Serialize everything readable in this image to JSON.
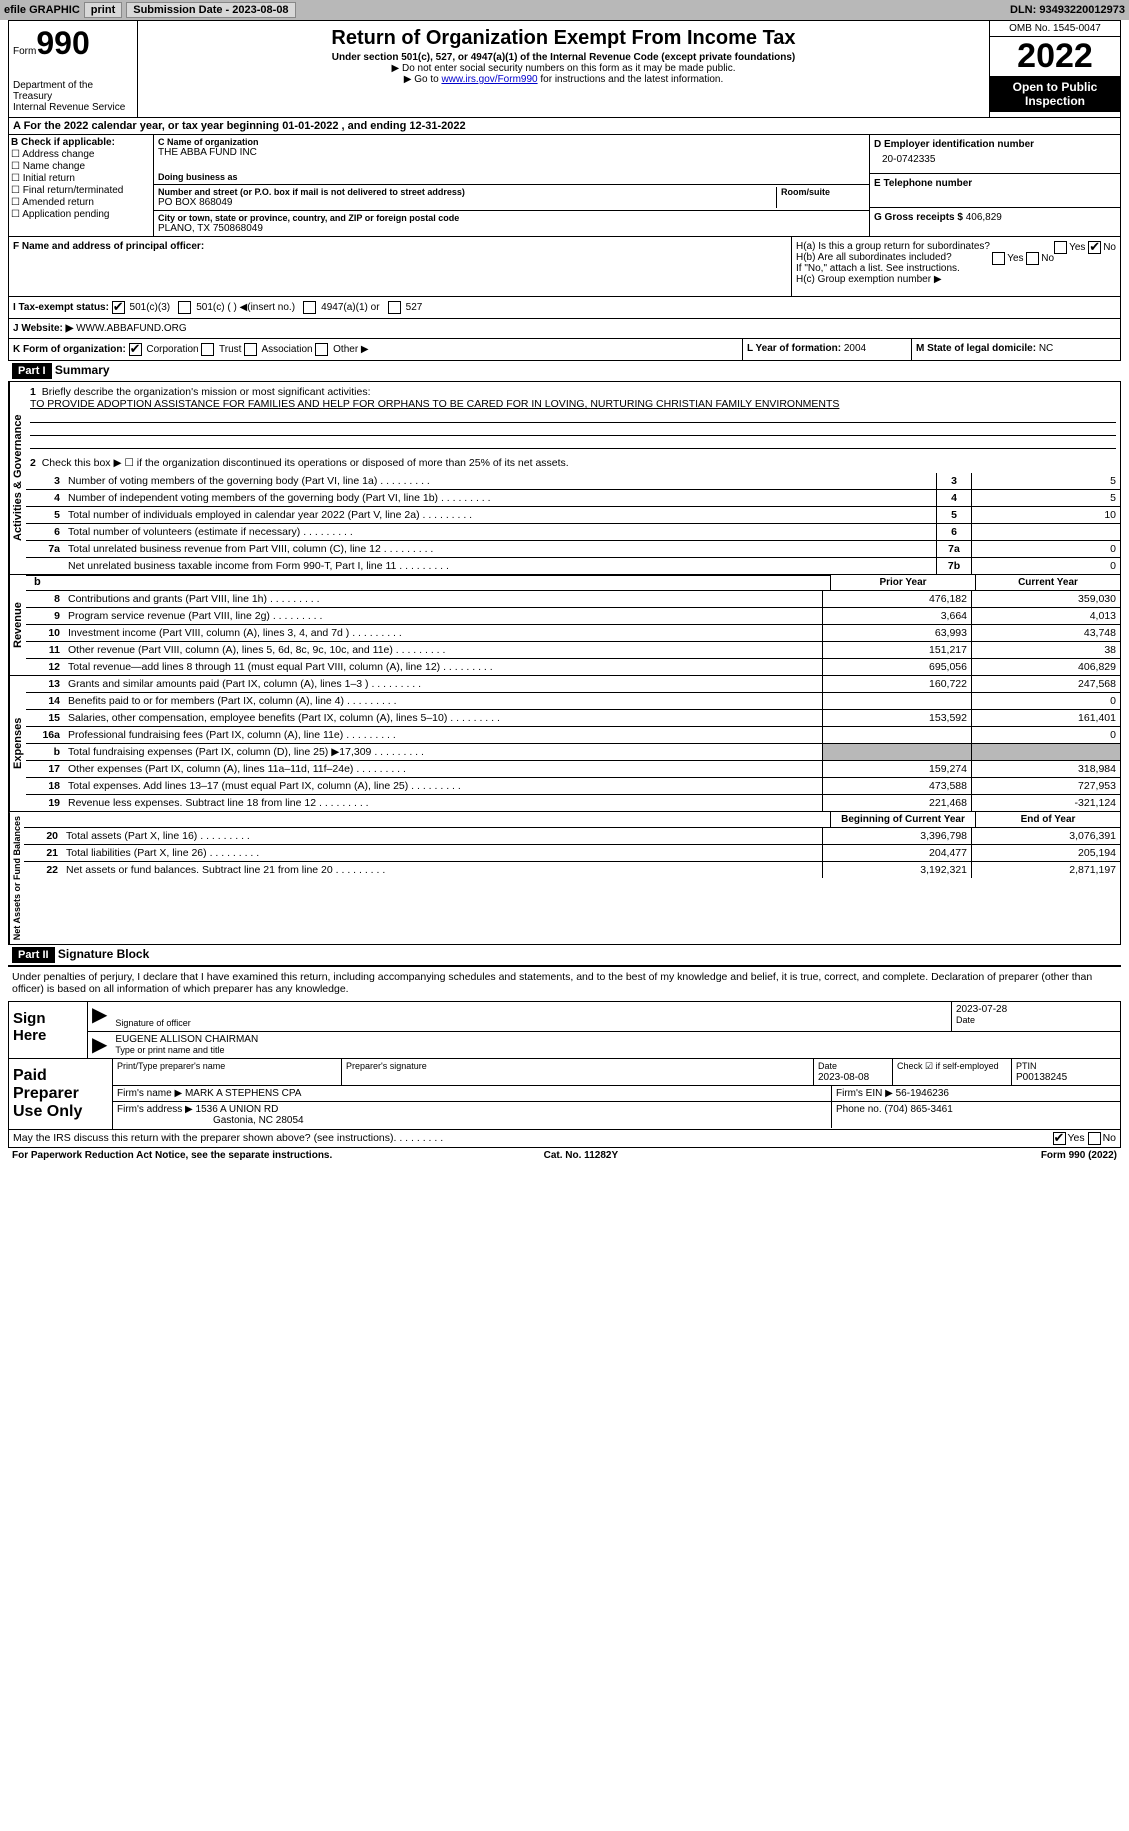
{
  "topbar": {
    "efile": "efile GRAPHIC",
    "print": "print",
    "subdate_label": "Submission Date - ",
    "subdate": "2023-08-08",
    "dln_label": "DLN: ",
    "dln": "93493220012973"
  },
  "header": {
    "form_label": "Form",
    "form_num": "990",
    "dept": "Department of the Treasury\nInternal Revenue Service",
    "title": "Return of Organization Exempt From Income Tax",
    "sub1": "Under section 501(c), 527, or 4947(a)(1) of the Internal Revenue Code (except private foundations)",
    "sub2": "▶ Do not enter social security numbers on this form as it may be made public.",
    "sub3_pre": "▶ Go to ",
    "sub3_link": "www.irs.gov/Form990",
    "sub3_post": " for instructions and the latest information.",
    "omb": "OMB No. 1545-0047",
    "year": "2022",
    "otp": "Open to Public Inspection"
  },
  "A": {
    "text": "A For the 2022 calendar year, or tax year beginning 01-01-2022   , and ending 12-31-2022"
  },
  "B": {
    "label": "B Check if applicable:",
    "items": [
      "Address change",
      "Name change",
      "Initial return",
      "Final return/terminated",
      "Amended return",
      "Application pending"
    ]
  },
  "C": {
    "name_label": "C Name of organization",
    "name": "THE ABBA FUND INC",
    "dba_label": "Doing business as",
    "addr_label": "Number and street (or P.O. box if mail is not delivered to street address)",
    "room_label": "Room/suite",
    "addr": "PO BOX 868049",
    "city_label": "City or town, state or province, country, and ZIP or foreign postal code",
    "city": "PLANO, TX  750868049"
  },
  "D": {
    "label": "D Employer identification number",
    "val": "20-0742335"
  },
  "E": {
    "label": "E Telephone number"
  },
  "G": {
    "label": "G Gross receipts $ ",
    "val": "406,829"
  },
  "F": {
    "label": "F Name and address of principal officer:"
  },
  "H": {
    "a": "H(a)  Is this a group return for subordinates?",
    "b": "H(b)  Are all subordinates included?",
    "b_note": "If \"No,\" attach a list. See instructions.",
    "c": "H(c)  Group exemption number ▶",
    "yes": "Yes",
    "no": "No"
  },
  "I": {
    "label": "I   Tax-exempt status:",
    "opts": [
      "501(c)(3)",
      "501(c) (  ) ◀(insert no.)",
      "4947(a)(1) or",
      "527"
    ]
  },
  "J": {
    "label": "J   Website: ▶ ",
    "val": "WWW.ABBAFUND.ORG"
  },
  "K": {
    "label": "K Form of organization:",
    "opts": [
      "Corporation",
      "Trust",
      "Association",
      "Other ▶"
    ]
  },
  "L": {
    "label": "L Year of formation: ",
    "val": "2004"
  },
  "M": {
    "label": "M State of legal domicile: ",
    "val": "NC"
  },
  "part1": {
    "hdr": "Part I",
    "title": "Summary",
    "sec1_label": "Activities & Governance",
    "sec2_label": "Revenue",
    "sec3_label": "Expenses",
    "sec4_label": "Net Assets or Fund Balances",
    "l1_label": "Briefly describe the organization's mission or most significant activities:",
    "l1_text": "TO PROVIDE ADOPTION ASSISTANCE FOR FAMILIES AND HELP FOR ORPHANS TO BE CARED FOR IN LOVING, NURTURING CHRISTIAN FAMILY ENVIRONMENTS",
    "l2": "Check this box ▶ ☐ if the organization discontinued its operations or disposed of more than 25% of its net assets.",
    "col_prior": "Prior Year",
    "col_current": "Current Year",
    "col_begin": "Beginning of Current Year",
    "col_end": "End of Year",
    "rows_gov": [
      {
        "n": "3",
        "t": "Number of voting members of the governing body (Part VI, line 1a)",
        "box": "3",
        "v": "5"
      },
      {
        "n": "4",
        "t": "Number of independent voting members of the governing body (Part VI, line 1b)",
        "box": "4",
        "v": "5"
      },
      {
        "n": "5",
        "t": "Total number of individuals employed in calendar year 2022 (Part V, line 2a)",
        "box": "5",
        "v": "10"
      },
      {
        "n": "6",
        "t": "Total number of volunteers (estimate if necessary)",
        "box": "6",
        "v": ""
      },
      {
        "n": "7a",
        "t": "Total unrelated business revenue from Part VIII, column (C), line 12",
        "box": "7a",
        "v": "0"
      },
      {
        "n": "",
        "t": "Net unrelated business taxable income from Form 990-T, Part I, line 11",
        "box": "7b",
        "v": "0"
      }
    ],
    "rows_rev": [
      {
        "n": "8",
        "t": "Contributions and grants (Part VIII, line 1h)",
        "p": "476,182",
        "c": "359,030"
      },
      {
        "n": "9",
        "t": "Program service revenue (Part VIII, line 2g)",
        "p": "3,664",
        "c": "4,013"
      },
      {
        "n": "10",
        "t": "Investment income (Part VIII, column (A), lines 3, 4, and 7d )",
        "p": "63,993",
        "c": "43,748"
      },
      {
        "n": "11",
        "t": "Other revenue (Part VIII, column (A), lines 5, 6d, 8c, 9c, 10c, and 11e)",
        "p": "151,217",
        "c": "38"
      },
      {
        "n": "12",
        "t": "Total revenue—add lines 8 through 11 (must equal Part VIII, column (A), line 12)",
        "p": "695,056",
        "c": "406,829"
      }
    ],
    "rows_exp": [
      {
        "n": "13",
        "t": "Grants and similar amounts paid (Part IX, column (A), lines 1–3 )",
        "p": "160,722",
        "c": "247,568"
      },
      {
        "n": "14",
        "t": "Benefits paid to or for members (Part IX, column (A), line 4)",
        "p": "",
        "c": "0"
      },
      {
        "n": "15",
        "t": "Salaries, other compensation, employee benefits (Part IX, column (A), lines 5–10)",
        "p": "153,592",
        "c": "161,401"
      },
      {
        "n": "16a",
        "t": "Professional fundraising fees (Part IX, column (A), line 11e)",
        "p": "",
        "c": "0"
      },
      {
        "n": "b",
        "t": "Total fundraising expenses (Part IX, column (D), line 25) ▶17,309",
        "p": "gray",
        "c": "gray"
      },
      {
        "n": "17",
        "t": "Other expenses (Part IX, column (A), lines 11a–11d, 11f–24e)",
        "p": "159,274",
        "c": "318,984"
      },
      {
        "n": "18",
        "t": "Total expenses. Add lines 13–17 (must equal Part IX, column (A), line 25)",
        "p": "473,588",
        "c": "727,953"
      },
      {
        "n": "19",
        "t": "Revenue less expenses. Subtract line 18 from line 12",
        "p": "221,468",
        "c": "-321,124"
      }
    ],
    "rows_net": [
      {
        "n": "20",
        "t": "Total assets (Part X, line 16)",
        "p": "3,396,798",
        "c": "3,076,391"
      },
      {
        "n": "21",
        "t": "Total liabilities (Part X, line 26)",
        "p": "204,477",
        "c": "205,194"
      },
      {
        "n": "22",
        "t": "Net assets or fund balances. Subtract line 21 from line 20",
        "p": "3,192,321",
        "c": "2,871,197"
      }
    ]
  },
  "part2": {
    "hdr": "Part II",
    "title": "Signature Block",
    "decl": "Under penalties of perjury, I declare that I have examined this return, including accompanying schedules and statements, and to the best of my knowledge and belief, it is true, correct, and complete. Declaration of preparer (other than officer) is based on all information of which preparer has any knowledge.",
    "sign_here": "Sign Here",
    "sig_officer": "Signature of officer",
    "sig_date": "2023-07-28",
    "sig_date_lbl": "Date",
    "officer_name": "EUGENE ALLISON  CHAIRMAN",
    "officer_lbl": "Type or print name and title",
    "paid_label": "Paid Preparer Use Only",
    "prep_name_lbl": "Print/Type preparer's name",
    "prep_sig_lbl": "Preparer's signature",
    "prep_date_lbl": "Date",
    "prep_date": "2023-08-08",
    "check_lbl": "Check ☑ if self-employed",
    "ptin_lbl": "PTIN",
    "ptin": "P00138245",
    "firm_name_lbl": "Firm's name    ▶ ",
    "firm_name": "MARK A STEPHENS CPA",
    "firm_ein_lbl": "Firm's EIN ▶ ",
    "firm_ein": "56-1946236",
    "firm_addr_lbl": "Firm's address ▶ ",
    "firm_addr": "1536 A UNION RD",
    "firm_city": "Gastonia, NC  28054",
    "phone_lbl": "Phone no. ",
    "phone": "(704) 865-3461",
    "discuss": "May the IRS discuss this return with the preparer shown above? (see instructions)",
    "yes": "Yes",
    "no": "No"
  },
  "footer": {
    "l": "For Paperwork Reduction Act Notice, see the separate instructions.",
    "m": "Cat. No. 11282Y",
    "r": "Form 990 (2022)"
  }
}
